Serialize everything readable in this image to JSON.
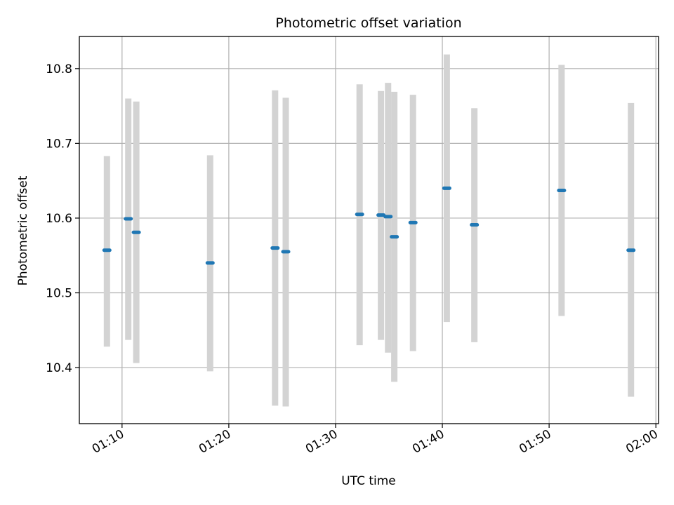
{
  "chart_data": {
    "type": "scatter",
    "title": "Photometric offset variation",
    "xlabel": "UTC time",
    "ylabel": "Photometric offset",
    "x_ticks": [
      "01:10",
      "01:20",
      "01:30",
      "01:40",
      "01:50",
      "02:00"
    ],
    "y_ticks": [
      "10.4",
      "10.5",
      "10.6",
      "10.7",
      "10.8"
    ],
    "xlim": [
      "01:06:00",
      "02:00:15"
    ],
    "ylim": [
      10.325,
      10.843
    ],
    "grid": true,
    "error_bars": true,
    "colors": {
      "marker": "#1f77b4",
      "errorbar": "#d3d3d3"
    },
    "points": [
      {
        "time": "01:08:35",
        "value": 10.557,
        "low": 10.428,
        "high": 10.683
      },
      {
        "time": "01:10:35",
        "value": 10.599,
        "low": 10.437,
        "high": 10.76
      },
      {
        "time": "01:11:20",
        "value": 10.581,
        "low": 10.406,
        "high": 10.756
      },
      {
        "time": "01:18:15",
        "value": 10.54,
        "low": 10.395,
        "high": 10.684
      },
      {
        "time": "01:24:20",
        "value": 10.56,
        "low": 10.349,
        "high": 10.771
      },
      {
        "time": "01:25:20",
        "value": 10.555,
        "low": 10.348,
        "high": 10.761
      },
      {
        "time": "01:32:15",
        "value": 10.605,
        "low": 10.43,
        "high": 10.779
      },
      {
        "time": "01:34:15",
        "value": 10.604,
        "low": 10.437,
        "high": 10.77
      },
      {
        "time": "01:34:55",
        "value": 10.602,
        "low": 10.42,
        "high": 10.781
      },
      {
        "time": "01:35:30",
        "value": 10.575,
        "low": 10.381,
        "high": 10.769
      },
      {
        "time": "01:37:15",
        "value": 10.594,
        "low": 10.422,
        "high": 10.765
      },
      {
        "time": "01:40:25",
        "value": 10.64,
        "low": 10.461,
        "high": 10.819
      },
      {
        "time": "01:43:00",
        "value": 10.591,
        "low": 10.434,
        "high": 10.747
      },
      {
        "time": "01:51:10",
        "value": 10.637,
        "low": 10.469,
        "high": 10.805
      },
      {
        "time": "01:57:40",
        "value": 10.557,
        "low": 10.361,
        "high": 10.754
      }
    ]
  }
}
